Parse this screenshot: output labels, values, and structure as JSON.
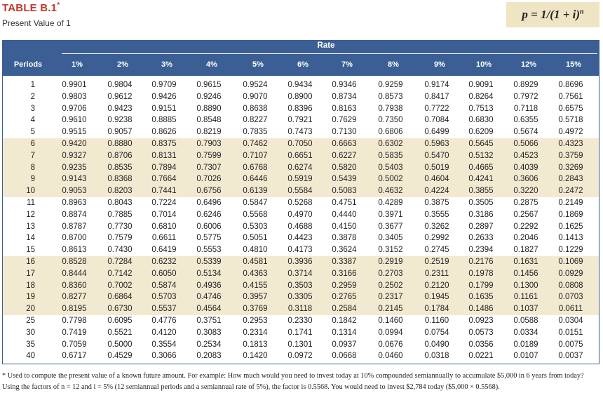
{
  "header": {
    "title": "TABLE B.1",
    "title_mark": "*",
    "subtitle": "Present Value of 1",
    "formula": "p = 1/(1 + i)",
    "formula_exp": "n"
  },
  "table": {
    "group_label": "Rate",
    "row_header": "Periods",
    "columns": [
      "1%",
      "2%",
      "3%",
      "4%",
      "5%",
      "6%",
      "7%",
      "8%",
      "9%",
      "10%",
      "12%",
      "15%"
    ],
    "rows": [
      {
        "period": "1",
        "values": [
          "0.9901",
          "0.9804",
          "0.9709",
          "0.9615",
          "0.9524",
          "0.9434",
          "0.9346",
          "0.9259",
          "0.9174",
          "0.9091",
          "0.8929",
          "0.8696"
        ]
      },
      {
        "period": "2",
        "values": [
          "0.9803",
          "0.9612",
          "0.9426",
          "0.9246",
          "0.9070",
          "0.8900",
          "0.8734",
          "0.8573",
          "0.8417",
          "0.8264",
          "0.7972",
          "0.7561"
        ]
      },
      {
        "period": "3",
        "values": [
          "0.9706",
          "0.9423",
          "0.9151",
          "0.8890",
          "0.8638",
          "0.8396",
          "0.8163",
          "0.7938",
          "0.7722",
          "0.7513",
          "0.7118",
          "0.6575"
        ]
      },
      {
        "period": "4",
        "values": [
          "0.9610",
          "0.9238",
          "0.8885",
          "0.8548",
          "0.8227",
          "0.7921",
          "0.7629",
          "0.7350",
          "0.7084",
          "0.6830",
          "0.6355",
          "0.5718"
        ]
      },
      {
        "period": "5",
        "values": [
          "0.9515",
          "0.9057",
          "0.8626",
          "0.8219",
          "0.7835",
          "0.7473",
          "0.7130",
          "0.6806",
          "0.6499",
          "0.6209",
          "0.5674",
          "0.4972"
        ]
      },
      {
        "period": "6",
        "values": [
          "0.9420",
          "0.8880",
          "0.8375",
          "0.7903",
          "0.7462",
          "0.7050",
          "0.6663",
          "0.6302",
          "0.5963",
          "0.5645",
          "0.5066",
          "0.4323"
        ]
      },
      {
        "period": "7",
        "values": [
          "0.9327",
          "0.8706",
          "0.8131",
          "0.7599",
          "0.7107",
          "0.6651",
          "0.6227",
          "0.5835",
          "0.5470",
          "0.5132",
          "0.4523",
          "0.3759"
        ]
      },
      {
        "period": "8",
        "values": [
          "0.9235",
          "0.8535",
          "0.7894",
          "0.7307",
          "0.6768",
          "0.6274",
          "0.5820",
          "0.5403",
          "0.5019",
          "0.4665",
          "0.4039",
          "0.3269"
        ]
      },
      {
        "period": "9",
        "values": [
          "0.9143",
          "0.8368",
          "0.7664",
          "0.7026",
          "0.6446",
          "0.5919",
          "0.5439",
          "0.5002",
          "0.4604",
          "0.4241",
          "0.3606",
          "0.2843"
        ]
      },
      {
        "period": "10",
        "values": [
          "0.9053",
          "0.8203",
          "0.7441",
          "0.6756",
          "0.6139",
          "0.5584",
          "0.5083",
          "0.4632",
          "0.4224",
          "0.3855",
          "0.3220",
          "0.2472"
        ]
      },
      {
        "period": "11",
        "values": [
          "0.8963",
          "0.8043",
          "0.7224",
          "0.6496",
          "0.5847",
          "0.5268",
          "0.4751",
          "0.4289",
          "0.3875",
          "0.3505",
          "0.2875",
          "0.2149"
        ]
      },
      {
        "period": "12",
        "values": [
          "0.8874",
          "0.7885",
          "0.7014",
          "0.6246",
          "0.5568",
          "0.4970",
          "0.4440",
          "0.3971",
          "0.3555",
          "0.3186",
          "0.2567",
          "0.1869"
        ]
      },
      {
        "period": "13",
        "values": [
          "0.8787",
          "0.7730",
          "0.6810",
          "0.6006",
          "0.5303",
          "0.4688",
          "0.4150",
          "0.3677",
          "0.3262",
          "0.2897",
          "0.2292",
          "0.1625"
        ]
      },
      {
        "period": "14",
        "values": [
          "0.8700",
          "0.7579",
          "0.6611",
          "0.5775",
          "0.5051",
          "0.4423",
          "0.3878",
          "0.3405",
          "0.2992",
          "0.2633",
          "0.2046",
          "0.1413"
        ]
      },
      {
        "period": "15",
        "values": [
          "0.8613",
          "0.7430",
          "0.6419",
          "0.5553",
          "0.4810",
          "0.4173",
          "0.3624",
          "0.3152",
          "0.2745",
          "0.2394",
          "0.1827",
          "0.1229"
        ]
      },
      {
        "period": "16",
        "values": [
          "0.8528",
          "0.7284",
          "0.6232",
          "0.5339",
          "0.4581",
          "0.3936",
          "0.3387",
          "0.2919",
          "0.2519",
          "0.2176",
          "0.1631",
          "0.1069"
        ]
      },
      {
        "period": "17",
        "values": [
          "0.8444",
          "0.7142",
          "0.6050",
          "0.5134",
          "0.4363",
          "0.3714",
          "0.3166",
          "0.2703",
          "0.2311",
          "0.1978",
          "0.1456",
          "0.0929"
        ]
      },
      {
        "period": "18",
        "values": [
          "0.8360",
          "0.7002",
          "0.5874",
          "0.4936",
          "0.4155",
          "0.3503",
          "0.2959",
          "0.2502",
          "0.2120",
          "0.1799",
          "0.1300",
          "0.0808"
        ]
      },
      {
        "period": "19",
        "values": [
          "0.8277",
          "0.6864",
          "0.5703",
          "0.4746",
          "0.3957",
          "0.3305",
          "0.2765",
          "0.2317",
          "0.1945",
          "0.1635",
          "0.1161",
          "0.0703"
        ]
      },
      {
        "period": "20",
        "values": [
          "0.8195",
          "0.6730",
          "0.5537",
          "0.4564",
          "0.3769",
          "0.3118",
          "0.2584",
          "0.2145",
          "0.1784",
          "0.1486",
          "0.1037",
          "0.0611"
        ]
      },
      {
        "period": "25",
        "values": [
          "0.7798",
          "0.6095",
          "0.4776",
          "0.3751",
          "0.2953",
          "0.2330",
          "0.1842",
          "0.1460",
          "0.1160",
          "0.0923",
          "0.0588",
          "0.0304"
        ]
      },
      {
        "period": "30",
        "values": [
          "0.7419",
          "0.5521",
          "0.4120",
          "0.3083",
          "0.2314",
          "0.1741",
          "0.1314",
          "0.0994",
          "0.0754",
          "0.0573",
          "0.0334",
          "0.0151"
        ]
      },
      {
        "period": "35",
        "values": [
          "0.7059",
          "0.5000",
          "0.3554",
          "0.2534",
          "0.1813",
          "0.1301",
          "0.0937",
          "0.0676",
          "0.0490",
          "0.0356",
          "0.0189",
          "0.0075"
        ]
      },
      {
        "period": "40",
        "values": [
          "0.6717",
          "0.4529",
          "0.3066",
          "0.2083",
          "0.1420",
          "0.0972",
          "0.0668",
          "0.0460",
          "0.0318",
          "0.0221",
          "0.0107",
          "0.0037"
        ]
      }
    ]
  },
  "footnote": "* Used to compute the present value of a known future amount. For example: How much would you need to invest today at 10% compounded semiannually to accumulate $5,000 in 6 years from today? Using the factors of n = 12 and i = 5% (12 semiannual periods and a semiannual rate of 5%), the factor is 0.5568. You would need to invest $2,784 today ($5,000 × 0.5568)."
}
